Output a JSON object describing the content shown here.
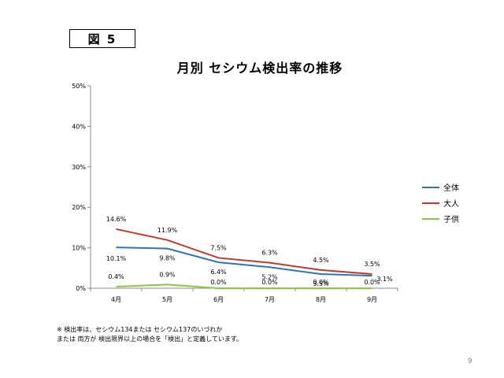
{
  "figure_label": "図 5",
  "chart_data": {
    "type": "line",
    "title": "月別 セシウム検出率の推移",
    "categories": [
      "4月",
      "5月",
      "6月",
      "7月",
      "8月",
      "9月"
    ],
    "ylim": [
      0,
      50
    ],
    "y_ticks": [
      "0%",
      "10%",
      "20%",
      "30%",
      "40%",
      "50%"
    ],
    "grid": false,
    "legend_position": "right",
    "series": [
      {
        "name": "全体",
        "color": "#2e75b6",
        "values": [
          10.1,
          9.8,
          6.4,
          5.2,
          3.5,
          3.1
        ],
        "labels": [
          "10.1%",
          "9.8%",
          "6.4%",
          "5.2%",
          "3.5%",
          "3.1%"
        ]
      },
      {
        "name": "大人",
        "color": "#c0392b",
        "values": [
          14.6,
          11.9,
          7.5,
          6.3,
          4.5,
          3.5
        ],
        "labels": [
          "14.6%",
          "11.9%",
          "7.5%",
          "6.3%",
          "4.5%",
          "3.5%"
        ]
      },
      {
        "name": "子供",
        "color": "#8dc63f",
        "values": [
          0.4,
          0.9,
          0.0,
          0.0,
          0.0,
          0.0
        ],
        "labels": [
          "0.4%",
          "0.9%",
          "0.0%",
          "0.0%",
          "0.0%",
          "0.0%"
        ]
      }
    ]
  },
  "note": {
    "line1": "※ 検出率は、セシウム134または セシウム137のいづれか",
    "line2": "または 両方が 検出限界以上の場合を「検出」と定義しています。"
  },
  "page_number": "9"
}
